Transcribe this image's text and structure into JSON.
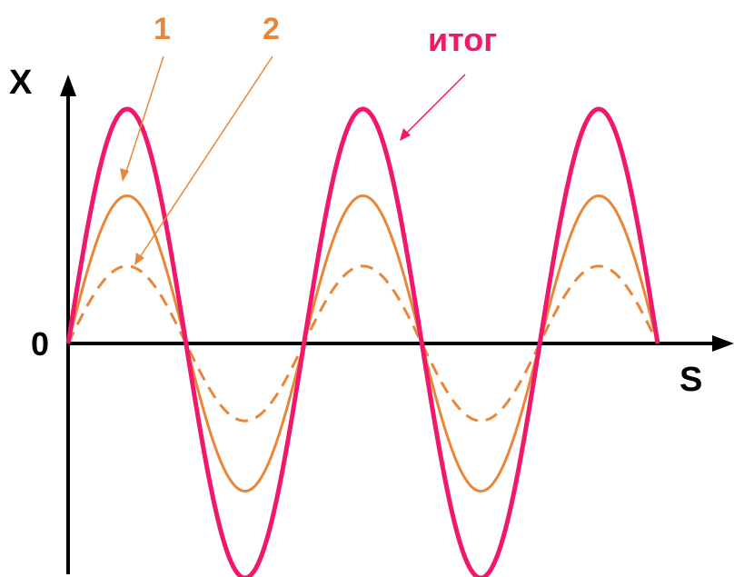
{
  "axes": {
    "y_label": "X",
    "x_label": "S",
    "origin_label": "0"
  },
  "labels": {
    "wave1": "1",
    "wave2": "2",
    "result": "итог"
  },
  "colors": {
    "axis": "#000000",
    "component": "#e8873a",
    "result": "#f0186a"
  },
  "waves": {
    "cycles": 2.5,
    "result_amplitude": 1.0,
    "wave1_amplitude": 0.63,
    "wave2_amplitude": 0.33,
    "wave2_style": "dashed"
  }
}
